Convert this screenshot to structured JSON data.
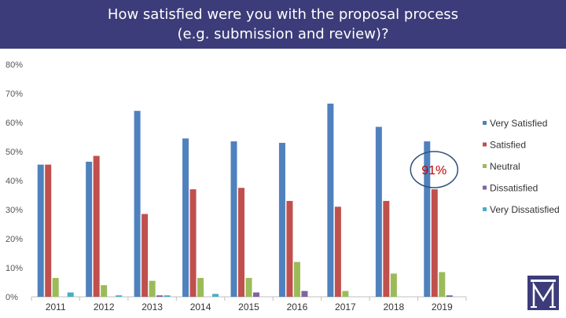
{
  "header": {
    "title_line1": "How satisfied were you with the proposal process",
    "title_line2": "(e.g. submission and review)?"
  },
  "callout": {
    "label": "91%"
  },
  "colors": {
    "banner": "#3c3c7a",
    "very_satisfied": "#4f81bd",
    "satisfied": "#c0504d",
    "neutral": "#9bbb59",
    "dissatisfied": "#8064a2",
    "very_dissatisfied": "#4bacc6",
    "callout_ring": "#2f4f7f"
  },
  "logo": {
    "icon": "institution-m-logo-icon"
  },
  "chart_data": {
    "type": "bar",
    "title": "How satisfied were you with the proposal process (e.g. submission and review)?",
    "xlabel": "",
    "ylabel": "",
    "ylim": [
      0,
      80
    ],
    "yticks": [
      "0%",
      "10%",
      "20%",
      "30%",
      "40%",
      "50%",
      "60%",
      "70%",
      "80%"
    ],
    "grid": false,
    "legend_position": "right",
    "categories": [
      "2011",
      "2012",
      "2013",
      "2014",
      "2015",
      "2016",
      "2017",
      "2018",
      "2019"
    ],
    "series": [
      {
        "name": "Very Satisfied",
        "color": "#4f81bd",
        "values": [
          45.5,
          46.5,
          64,
          54.5,
          53.5,
          53,
          66.5,
          58.5,
          53.5
        ]
      },
      {
        "name": "Satisfied",
        "color": "#c0504d",
        "values": [
          45.5,
          48.5,
          28.5,
          37,
          37.5,
          33,
          31,
          33,
          37
        ]
      },
      {
        "name": "Neutral",
        "color": "#9bbb59",
        "values": [
          6.5,
          4,
          5.5,
          6.5,
          6.5,
          12,
          2,
          8,
          8.5
        ]
      },
      {
        "name": "Dissatisfied",
        "color": "#8064a2",
        "values": [
          0,
          0,
          0.5,
          0,
          1.5,
          2,
          0,
          0,
          0.5
        ]
      },
      {
        "name": "Very Dissatisfied",
        "color": "#4bacc6",
        "values": [
          1.5,
          0.5,
          0.5,
          1,
          0,
          0,
          0,
          0,
          0
        ]
      }
    ],
    "annotation": {
      "text": "91%",
      "category": "2019"
    }
  }
}
